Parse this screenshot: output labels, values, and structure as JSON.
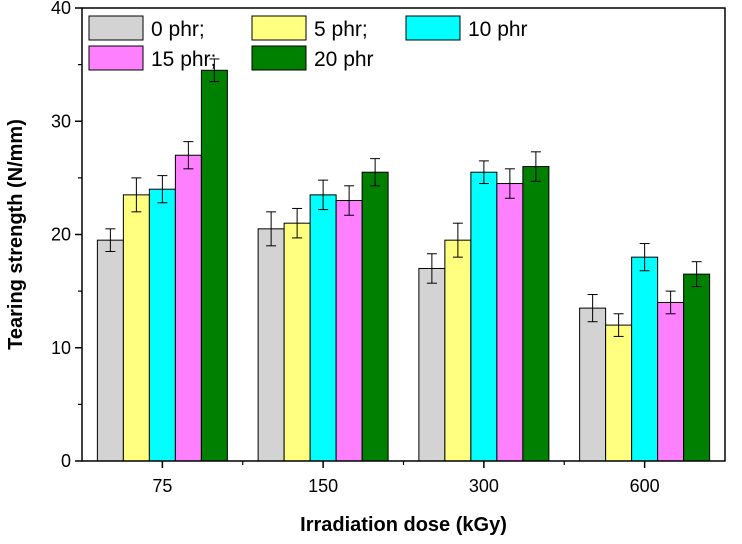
{
  "chart_data": {
    "type": "bar",
    "title": "",
    "xlabel": "Irradiation dose (kGy)",
    "ylabel": "Tearing strength (N/mm)",
    "categories": [
      "75",
      "150",
      "300",
      "600"
    ],
    "ylim": [
      0,
      40
    ],
    "yticks": [
      0,
      10,
      20,
      30,
      40
    ],
    "grid": false,
    "legend_position": "top-left",
    "series": [
      {
        "name": "0 phr;",
        "color": "#d3d3d3",
        "values": [
          19.5,
          20.5,
          17.0,
          13.5
        ],
        "errors": [
          1.0,
          1.5,
          1.3,
          1.2
        ]
      },
      {
        "name": "5 phr;",
        "color": "#ffff80",
        "values": [
          23.5,
          21.0,
          19.5,
          12.0
        ],
        "errors": [
          1.5,
          1.3,
          1.5,
          1.0
        ]
      },
      {
        "name": "10 phr",
        "color": "#00ffff",
        "values": [
          24.0,
          23.5,
          25.5,
          18.0
        ],
        "errors": [
          1.2,
          1.3,
          1.0,
          1.2
        ]
      },
      {
        "name": "15 phr;",
        "color": "#ff80ff",
        "values": [
          27.0,
          23.0,
          24.5,
          14.0
        ],
        "errors": [
          1.2,
          1.3,
          1.3,
          1.0
        ]
      },
      {
        "name": "20 phr",
        "color": "#008000",
        "values": [
          34.5,
          25.5,
          26.0,
          16.5
        ],
        "errors": [
          1.0,
          1.2,
          1.3,
          1.1
        ]
      }
    ]
  }
}
